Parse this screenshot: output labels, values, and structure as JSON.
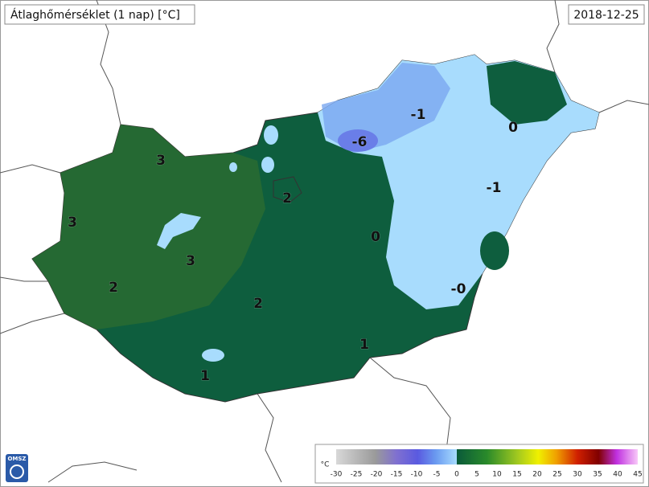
{
  "header": {
    "title": "Átlaghőmérséklet (1 nap) [°C]",
    "date": "2018-12-25"
  },
  "map_labels": [
    "3",
    "3",
    "3",
    "2",
    "2",
    "2",
    "1",
    "1",
    "0",
    "-1",
    "-1",
    "0",
    "-6",
    "-0"
  ],
  "legend": {
    "unit": "°C",
    "ticks": [
      "-30",
      "-25",
      "-20",
      "-15",
      "-10",
      "-5",
      "0",
      "5",
      "10",
      "15",
      "20",
      "25",
      "30",
      "35",
      "40",
      "45"
    ]
  },
  "logo": "OMSZ"
}
